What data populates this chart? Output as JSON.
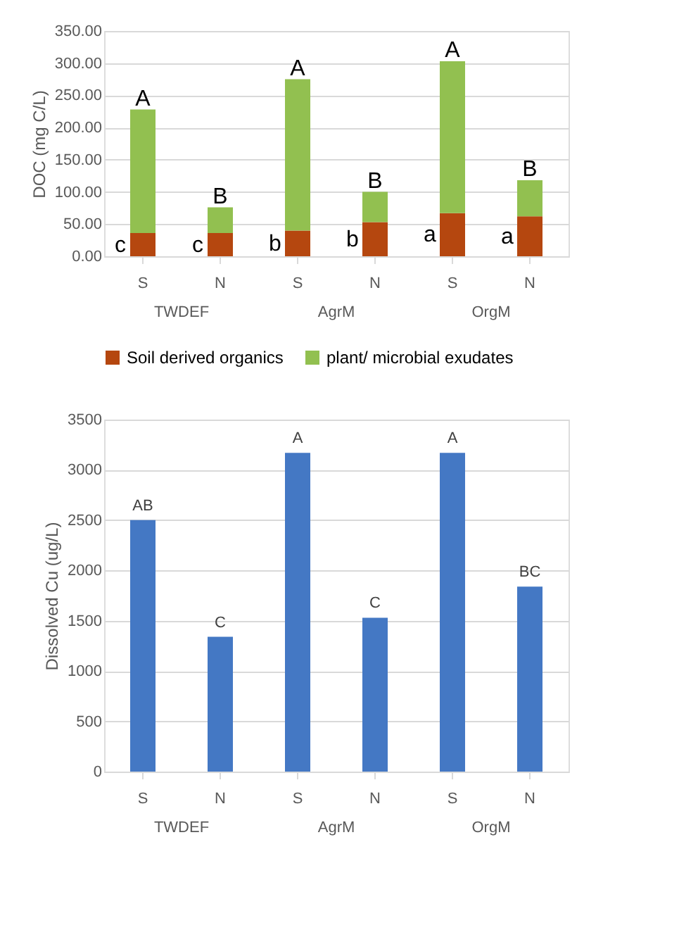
{
  "chart_data": [
    {
      "type": "bar",
      "stacked": true,
      "ylabel": "DOC (mg C/L)",
      "categories": [
        "S",
        "N",
        "S",
        "N",
        "S",
        "N"
      ],
      "series": [
        {
          "name": "Soil derived organics",
          "color": "#b5470f",
          "values": [
            36,
            36,
            40,
            53,
            67,
            62
          ],
          "value_labels": [
            "c",
            "c",
            "b",
            "b",
            "a",
            "a"
          ]
        },
        {
          "name": "plant/ microbial exudates",
          "color": "#92c050",
          "values": [
            192,
            40,
            235,
            47,
            236,
            56
          ],
          "value_labels": [
            "A",
            "B",
            "A",
            "B",
            "A",
            "B"
          ]
        }
      ],
      "ylim": [
        0,
        350
      ],
      "yticks": [
        {
          "value": 0,
          "label": "0.00"
        },
        {
          "value": 50,
          "label": "50.00"
        },
        {
          "value": 100,
          "label": "100.00"
        },
        {
          "value": 150,
          "label": "150.00"
        },
        {
          "value": 200,
          "label": "200.00"
        },
        {
          "value": 250,
          "label": "250.00"
        },
        {
          "value": 300,
          "label": "300.00"
        },
        {
          "value": 350,
          "label": "350.00"
        }
      ],
      "grid": "y",
      "legend": "bottom",
      "annotations": [
        "TWDEF",
        "AgrM",
        "OrgM"
      ]
    },
    {
      "type": "bar",
      "ylabel": "Dissolved Cu (ug/L)",
      "categories": [
        "S",
        "N",
        "S",
        "N",
        "S",
        "N"
      ],
      "series": [
        {
          "color": "#4478c4",
          "values": [
            2500,
            1340,
            3170,
            1530,
            3170,
            1840
          ],
          "value_labels": [
            "AB",
            "C",
            "A",
            "C",
            "A",
            "BC"
          ]
        }
      ],
      "ylim": [
        0,
        3500
      ],
      "yticks": [
        0,
        500,
        1000,
        1500,
        2000,
        2500,
        3000,
        3500
      ],
      "grid": "y",
      "annotations": [
        "TWDEF",
        "AgrM",
        "OrgM"
      ]
    }
  ]
}
